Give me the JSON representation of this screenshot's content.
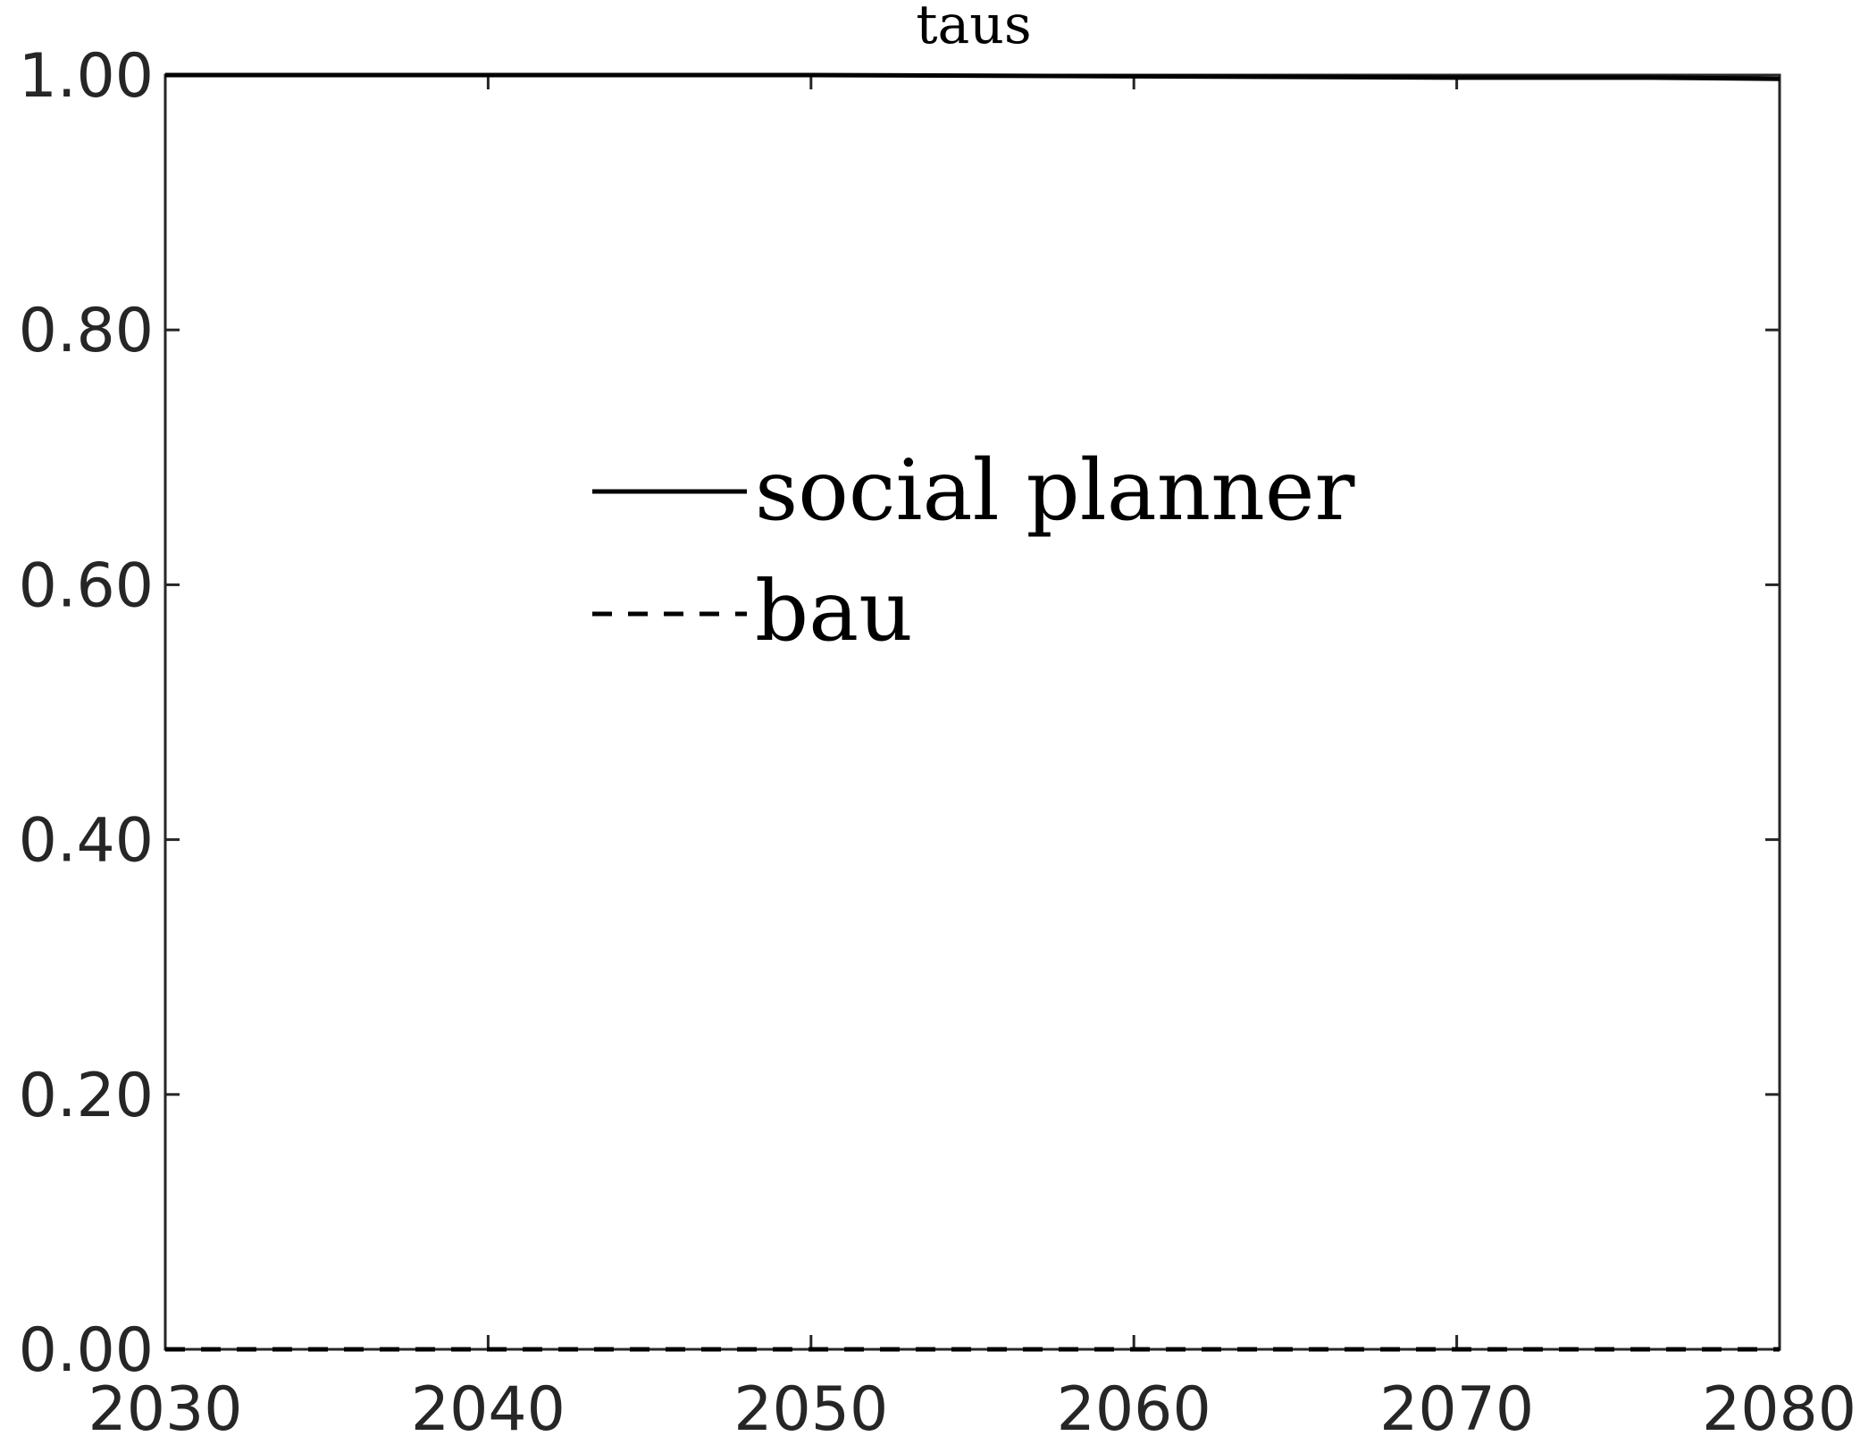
{
  "chart_data": {
    "type": "line",
    "title": "taus",
    "xlabel": "",
    "ylabel": "",
    "xlim": [
      2030,
      2080
    ],
    "ylim": [
      0,
      1
    ],
    "x_ticks": [
      "2030",
      "2040",
      "2050",
      "2060",
      "2070",
      "2080"
    ],
    "y_ticks": [
      "0.00",
      "0.20",
      "0.40",
      "0.60",
      "0.80",
      "1.00"
    ],
    "grid": false,
    "legend_position": "center-left",
    "x": [
      2030,
      2040,
      2050,
      2060,
      2070,
      2076,
      2080
    ],
    "series": [
      {
        "name": "social planner",
        "style": "solid",
        "color": "#000000",
        "values": [
          1.0,
          1.0,
          1.0,
          0.999,
          0.998,
          0.998,
          0.997
        ]
      },
      {
        "name": "bau",
        "style": "dashed",
        "color": "#000000",
        "values": [
          0.0,
          0.0,
          0.0,
          0.0,
          0.0,
          0.0,
          0.0
        ]
      }
    ]
  }
}
